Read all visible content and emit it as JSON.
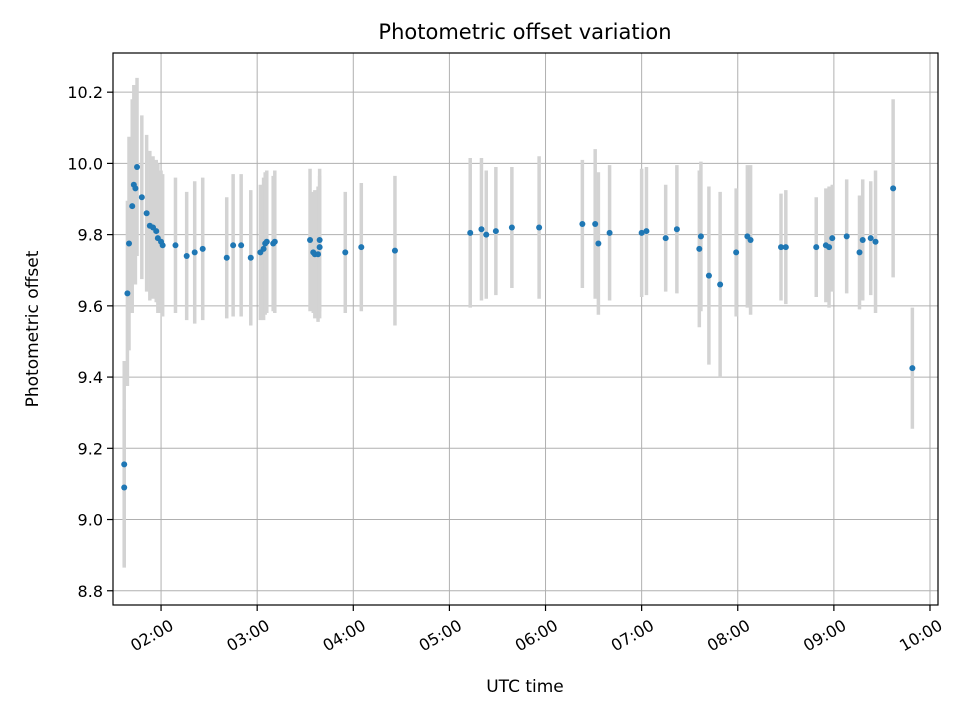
{
  "chart_data": {
    "type": "scatter",
    "title": "Photometric offset variation",
    "xlabel": "UTC time",
    "ylabel": "Photometric offset",
    "x_axis_type": "time",
    "xlim": [
      "01:30",
      "10:05"
    ],
    "ylim": [
      8.76,
      10.31
    ],
    "x_ticks": [
      "02:00",
      "03:00",
      "04:00",
      "05:00",
      "06:00",
      "07:00",
      "08:00",
      "09:00",
      "10:00"
    ],
    "y_ticks": [
      8.8,
      9.0,
      9.2,
      9.4,
      9.6,
      9.8,
      10.0,
      10.2
    ],
    "grid": true,
    "legend": "none",
    "colors": {
      "point": "#1f77b4",
      "error_bar": "#d3d3d3",
      "grid": "#b0b0b0"
    },
    "points": [
      {
        "x": "01:37",
        "y": 9.09,
        "err": 0.22
      },
      {
        "x": "01:37",
        "y": 9.155,
        "err": 0.29
      },
      {
        "x": "01:39",
        "y": 9.635,
        "err": 0.26
      },
      {
        "x": "01:40",
        "y": 9.775,
        "err": 0.3
      },
      {
        "x": "01:42",
        "y": 9.88,
        "err": 0.3
      },
      {
        "x": "01:43",
        "y": 9.94,
        "err": 0.28
      },
      {
        "x": "01:44",
        "y": 9.93,
        "err": 0.27
      },
      {
        "x": "01:45",
        "y": 9.99,
        "err": 0.25
      },
      {
        "x": "01:48",
        "y": 9.905,
        "err": 0.23
      },
      {
        "x": "01:51",
        "y": 9.86,
        "err": 0.22
      },
      {
        "x": "01:53",
        "y": 9.825,
        "err": 0.21
      },
      {
        "x": "01:55",
        "y": 9.82,
        "err": 0.2
      },
      {
        "x": "01:57",
        "y": 9.81,
        "err": 0.2
      },
      {
        "x": "01:58",
        "y": 9.79,
        "err": 0.21
      },
      {
        "x": "02:00",
        "y": 9.78,
        "err": 0.2
      },
      {
        "x": "02:01",
        "y": 9.77,
        "err": 0.2
      },
      {
        "x": "02:09",
        "y": 9.77,
        "err": 0.19
      },
      {
        "x": "02:16",
        "y": 9.74,
        "err": 0.18
      },
      {
        "x": "02:21",
        "y": 9.75,
        "err": 0.2
      },
      {
        "x": "02:26",
        "y": 9.76,
        "err": 0.2
      },
      {
        "x": "02:41",
        "y": 9.735,
        "err": 0.17
      },
      {
        "x": "02:45",
        "y": 9.77,
        "err": 0.2
      },
      {
        "x": "02:50",
        "y": 9.77,
        "err": 0.2
      },
      {
        "x": "02:56",
        "y": 9.735,
        "err": 0.19
      },
      {
        "x": "03:02",
        "y": 9.75,
        "err": 0.19
      },
      {
        "x": "03:04",
        "y": 9.76,
        "err": 0.2
      },
      {
        "x": "03:05",
        "y": 9.775,
        "err": 0.2
      },
      {
        "x": "03:06",
        "y": 9.78,
        "err": 0.2
      },
      {
        "x": "03:10",
        "y": 9.775,
        "err": 0.19
      },
      {
        "x": "03:11",
        "y": 9.78,
        "err": 0.2
      },
      {
        "x": "03:33",
        "y": 9.785,
        "err": 0.2
      },
      {
        "x": "03:35",
        "y": 9.75,
        "err": 0.17
      },
      {
        "x": "03:36",
        "y": 9.745,
        "err": 0.18
      },
      {
        "x": "03:38",
        "y": 9.745,
        "err": 0.19
      },
      {
        "x": "03:39",
        "y": 9.765,
        "err": 0.2
      },
      {
        "x": "03:39",
        "y": 9.785,
        "err": 0.2
      },
      {
        "x": "03:55",
        "y": 9.75,
        "err": 0.17
      },
      {
        "x": "04:05",
        "y": 9.765,
        "err": 0.18
      },
      {
        "x": "04:26",
        "y": 9.755,
        "err": 0.21
      },
      {
        "x": "05:13",
        "y": 9.805,
        "err": 0.21
      },
      {
        "x": "05:20",
        "y": 9.815,
        "err": 0.2
      },
      {
        "x": "05:23",
        "y": 9.8,
        "err": 0.18
      },
      {
        "x": "05:29",
        "y": 9.81,
        "err": 0.18
      },
      {
        "x": "05:39",
        "y": 9.82,
        "err": 0.17
      },
      {
        "x": "05:56",
        "y": 9.82,
        "err": 0.2
      },
      {
        "x": "06:23",
        "y": 9.83,
        "err": 0.18
      },
      {
        "x": "06:31",
        "y": 9.83,
        "err": 0.21
      },
      {
        "x": "06:33",
        "y": 9.775,
        "err": 0.2
      },
      {
        "x": "06:40",
        "y": 9.805,
        "err": 0.19
      },
      {
        "x": "07:00",
        "y": 9.805,
        "err": 0.18
      },
      {
        "x": "07:03",
        "y": 9.81,
        "err": 0.18
      },
      {
        "x": "07:15",
        "y": 9.79,
        "err": 0.15
      },
      {
        "x": "07:22",
        "y": 9.815,
        "err": 0.18
      },
      {
        "x": "07:36",
        "y": 9.76,
        "err": 0.22
      },
      {
        "x": "07:37",
        "y": 9.795,
        "err": 0.21
      },
      {
        "x": "07:42",
        "y": 9.685,
        "err": 0.25
      },
      {
        "x": "07:49",
        "y": 9.66,
        "err": 0.26
      },
      {
        "x": "07:59",
        "y": 9.75,
        "err": 0.18
      },
      {
        "x": "08:06",
        "y": 9.795,
        "err": 0.2
      },
      {
        "x": "08:08",
        "y": 9.785,
        "err": 0.21
      },
      {
        "x": "08:27",
        "y": 9.765,
        "err": 0.15
      },
      {
        "x": "08:30",
        "y": 9.765,
        "err": 0.16
      },
      {
        "x": "08:49",
        "y": 9.765,
        "err": 0.14
      },
      {
        "x": "08:55",
        "y": 9.77,
        "err": 0.16
      },
      {
        "x": "08:57",
        "y": 9.765,
        "err": 0.17
      },
      {
        "x": "08:59",
        "y": 9.79,
        "err": 0.15
      },
      {
        "x": "09:08",
        "y": 9.795,
        "err": 0.16
      },
      {
        "x": "09:16",
        "y": 9.75,
        "err": 0.16
      },
      {
        "x": "09:18",
        "y": 9.785,
        "err": 0.17
      },
      {
        "x": "09:23",
        "y": 9.79,
        "err": 0.16
      },
      {
        "x": "09:26",
        "y": 9.78,
        "err": 0.2
      },
      {
        "x": "09:37",
        "y": 9.93,
        "err": 0.25
      },
      {
        "x": "09:49",
        "y": 9.425,
        "err": 0.17
      }
    ]
  }
}
